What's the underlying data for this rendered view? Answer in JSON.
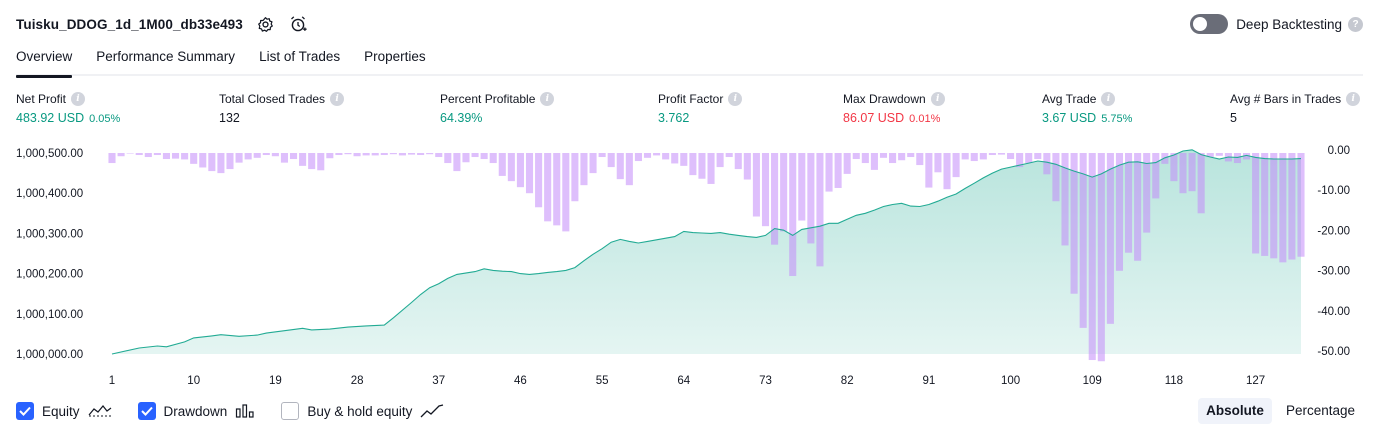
{
  "header": {
    "strategy_name": "Tuisku_DDOG_1d_1M00_db33e493",
    "settings_icon": "gear-icon",
    "add_alert_icon": "alarm-add-icon"
  },
  "deep_backtesting": {
    "label": "Deep Backtesting",
    "enabled": false,
    "help": "?"
  },
  "tabs": [
    {
      "label": "Overview",
      "active": true
    },
    {
      "label": "Performance Summary",
      "active": false
    },
    {
      "label": "List of Trades",
      "active": false
    },
    {
      "label": "Properties",
      "active": false
    }
  ],
  "metrics": {
    "net_profit": {
      "label": "Net Profit",
      "value": "483.92 USD",
      "pct": "0.05%"
    },
    "total_closed_trades": {
      "label": "Total Closed Trades",
      "value": "132"
    },
    "percent_profitable": {
      "label": "Percent Profitable",
      "value": "64.39%"
    },
    "profit_factor": {
      "label": "Profit Factor",
      "value": "3.762"
    },
    "max_drawdown": {
      "label": "Max Drawdown",
      "value": "86.07 USD",
      "pct": "0.01%"
    },
    "avg_trade": {
      "label": "Avg Trade",
      "value": "3.67 USD",
      "pct": "5.75%"
    },
    "avg_bars": {
      "label": "Avg # Bars in Trades",
      "value": "5"
    }
  },
  "chart_data": {
    "type": "area",
    "x_ticks": [
      "1",
      "10",
      "19",
      "28",
      "37",
      "46",
      "55",
      "64",
      "73",
      "82",
      "91",
      "100",
      "109",
      "118",
      "127"
    ],
    "y_left_ticks": [
      "1,000,500.00",
      "1,000,400.00",
      "1,000,300.00",
      "1,000,200.00",
      "1,000,100.00",
      "1,000,000.00"
    ],
    "y_right_ticks": [
      "0.00",
      "-10.00",
      "-20.00",
      "-30.00",
      "-40.00",
      "-50.00"
    ],
    "x_range": [
      1,
      132
    ],
    "ylim_left": [
      1000000,
      1000500
    ],
    "ylim_right": [
      -50,
      0
    ],
    "colors": {
      "equity_line": "#22ab94",
      "equity_fill": "#22ab94",
      "drawdown": "#c38bf9"
    },
    "equity": [
      [
        1,
        1000000
      ],
      [
        4,
        1000015
      ],
      [
        6,
        1000020
      ],
      [
        7,
        1000018
      ],
      [
        9,
        1000030
      ],
      [
        10,
        1000040
      ],
      [
        12,
        1000045
      ],
      [
        13,
        1000048
      ],
      [
        15,
        1000044
      ],
      [
        17,
        1000047
      ],
      [
        18,
        1000052
      ],
      [
        20,
        1000058
      ],
      [
        22,
        1000064
      ],
      [
        23,
        1000060
      ],
      [
        25,
        1000062
      ],
      [
        27,
        1000067
      ],
      [
        29,
        1000070
      ],
      [
        31,
        1000072
      ],
      [
        32,
        1000090
      ],
      [
        34,
        1000128
      ],
      [
        35,
        1000148
      ],
      [
        36,
        1000165
      ],
      [
        37,
        1000175
      ],
      [
        38,
        1000188
      ],
      [
        39,
        1000198
      ],
      [
        41,
        1000205
      ],
      [
        42,
        1000212
      ],
      [
        43,
        1000208
      ],
      [
        44,
        1000206
      ],
      [
        45,
        1000205
      ],
      [
        46,
        1000200
      ],
      [
        47,
        1000198
      ],
      [
        48,
        1000200
      ],
      [
        49,
        1000203
      ],
      [
        50,
        1000205
      ],
      [
        51,
        1000208
      ],
      [
        52,
        1000215
      ],
      [
        53,
        1000232
      ],
      [
        54,
        1000248
      ],
      [
        55,
        1000262
      ],
      [
        56,
        1000278
      ],
      [
        57,
        1000285
      ],
      [
        58,
        1000280
      ],
      [
        59,
        1000276
      ],
      [
        60,
        1000280
      ],
      [
        61,
        1000284
      ],
      [
        62,
        1000288
      ],
      [
        63,
        1000292
      ],
      [
        64,
        1000305
      ],
      [
        65,
        1000302
      ],
      [
        66,
        1000301
      ],
      [
        67,
        1000300
      ],
      [
        68,
        1000302
      ],
      [
        69,
        1000298
      ],
      [
        70,
        1000295
      ],
      [
        71,
        1000292
      ],
      [
        72,
        1000290
      ],
      [
        73,
        1000295
      ],
      [
        74,
        1000312
      ],
      [
        75,
        1000308
      ],
      [
        76,
        1000295
      ],
      [
        77,
        1000310
      ],
      [
        78,
        1000314
      ],
      [
        79,
        1000318
      ],
      [
        80,
        1000325
      ],
      [
        81,
        1000325
      ],
      [
        82,
        1000335
      ],
      [
        83,
        1000345
      ],
      [
        84,
        1000350
      ],
      [
        85,
        1000358
      ],
      [
        86,
        1000367
      ],
      [
        87,
        1000372
      ],
      [
        88,
        1000375
      ],
      [
        89,
        1000368
      ],
      [
        90,
        1000367
      ],
      [
        91,
        1000372
      ],
      [
        92,
        1000380
      ],
      [
        93,
        1000390
      ],
      [
        94,
        1000398
      ],
      [
        95,
        1000412
      ],
      [
        96,
        1000425
      ],
      [
        97,
        1000438
      ],
      [
        98,
        1000450
      ],
      [
        99,
        1000460
      ],
      [
        100,
        1000465
      ],
      [
        101,
        1000470
      ],
      [
        102,
        1000475
      ],
      [
        103,
        1000480
      ],
      [
        104,
        1000477
      ],
      [
        105,
        1000472
      ],
      [
        106,
        1000463
      ],
      [
        107,
        1000455
      ],
      [
        108,
        1000448
      ],
      [
        109,
        1000440
      ],
      [
        110,
        1000448
      ],
      [
        111,
        1000460
      ],
      [
        112,
        1000470
      ],
      [
        113,
        1000477
      ],
      [
        114,
        1000478
      ],
      [
        115,
        1000474
      ],
      [
        116,
        1000476
      ],
      [
        117,
        1000488
      ],
      [
        118,
        1000495
      ],
      [
        119,
        1000505
      ],
      [
        120,
        1000508
      ],
      [
        121,
        1000496
      ],
      [
        122,
        1000490
      ],
      [
        123,
        1000485
      ],
      [
        124,
        1000490
      ],
      [
        125,
        1000489
      ],
      [
        126,
        1000494
      ],
      [
        127,
        1000489
      ],
      [
        128,
        1000486
      ],
      [
        129,
        1000485
      ],
      [
        130,
        1000485
      ],
      [
        131,
        1000485
      ],
      [
        132,
        1000486
      ]
    ],
    "drawdown": [
      -2.5,
      -0.8,
      0,
      -0.5,
      -1,
      -0.5,
      -1.5,
      -1.4,
      -1.6,
      -2.7,
      -3.6,
      -4.5,
      -5,
      -4,
      -2.4,
      -1.6,
      -1.2,
      -0.5,
      -0.8,
      -2.4,
      -1.5,
      -3.2,
      -4,
      -4.3,
      -1.3,
      -0.5,
      -0.3,
      -0.8,
      -0.6,
      -0.6,
      -0.5,
      -0.3,
      -0.6,
      -0.4,
      -0.5,
      -0.3,
      -1,
      -2.5,
      -4.5,
      -2.3,
      -1,
      -1.5,
      -2.5,
      -5.7,
      -7,
      -8.5,
      -10,
      -13.5,
      -17,
      -18,
      -19.5,
      -12,
      -8,
      -5,
      -1,
      -3.5,
      -6.5,
      -8,
      -2,
      -1.2,
      -0.6,
      -1.6,
      -2.6,
      -3.2,
      -5.5,
      -6.4,
      -7.7,
      -3.5,
      -1,
      -4,
      -6.6,
      -15.8,
      -18.2,
      -22.8,
      -19.5,
      -30.6,
      -16.8,
      -22.5,
      -28.2,
      -9.6,
      -8.7,
      -5.2,
      -1.5,
      -2.5,
      -4.2,
      -1.2,
      -2.5,
      -1.8,
      -1,
      -3,
      -8.6,
      -4.8,
      -9,
      -6,
      -1.6,
      -2,
      -1.6,
      -0.5,
      -0.4,
      -1.5,
      -3.5,
      -2.5,
      -1.5,
      -5.3,
      -12,
      -23,
      -35,
      -43.5,
      -51.5,
      -51.8,
      -42.5,
      -29.3,
      -24.8,
      -26.8,
      -19.8,
      -11.3,
      -2.7,
      -7,
      -10,
      -9.5,
      -15,
      -1,
      -0.7,
      -2.1,
      -2.5,
      -1.6,
      -25,
      -25.6,
      -26.2,
      -27.2,
      -26.5,
      -25.8
    ]
  },
  "footer": {
    "checkboxes": [
      {
        "label": "Equity",
        "checked": true,
        "icon": "equity-line-icon"
      },
      {
        "label": "Drawdown",
        "checked": true,
        "icon": "drawdown-bars-icon"
      },
      {
        "label": "Buy & hold equity",
        "checked": false,
        "icon": "buy-hold-line-icon"
      }
    ],
    "mode": {
      "absolute": "Absolute",
      "percentage": "Percentage",
      "active": "absolute"
    }
  }
}
